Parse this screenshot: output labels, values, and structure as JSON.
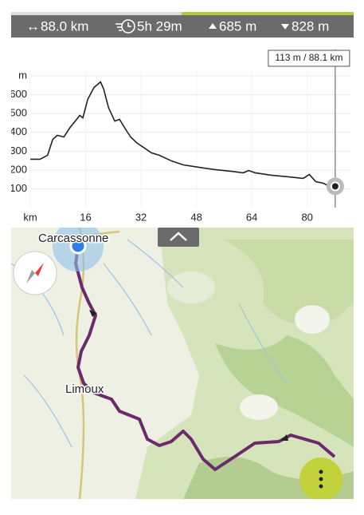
{
  "stats": {
    "distance": "88.0 km",
    "duration": "5h 29m",
    "ascent": "685 m",
    "descent": "828 m"
  },
  "chart_data": {
    "type": "line",
    "annotation": "113 m / 88.1 km",
    "x": [
      0,
      2.8,
      5,
      6.5,
      7.8,
      9.7,
      11.5,
      13.4,
      14.3,
      15.2,
      16.6,
      18.4,
      20.3,
      21.2,
      22.6,
      24.4,
      25.8,
      27.2,
      29,
      30.9,
      32.7,
      35,
      37.3,
      40.8,
      44.2,
      48.8,
      53.4,
      58.1,
      61.5,
      63.1,
      65,
      69.6,
      74.2,
      78.8,
      80.6,
      82.5,
      84.6,
      86.4,
      88.1
    ],
    "series": [
      {
        "color": "#222222",
        "values": [
          257,
          257,
          278,
          363,
          384,
          375,
          426,
          469,
          490,
          477,
          575,
          638,
          668,
          630,
          532,
          460,
          469,
          426,
          375,
          342,
          320,
          291,
          278,
          248,
          227,
          214,
          202,
          193,
          185,
          197,
          185,
          172,
          164,
          155,
          176,
          138,
          130,
          113,
          113
        ]
      }
    ],
    "xlim": [
      0,
      92.5
    ],
    "ylim": [
      0,
      730
    ],
    "xticks": [
      {
        "value": 0,
        "label": "km"
      },
      16,
      32,
      48,
      64,
      80
    ],
    "yticks": [
      100,
      200,
      300,
      400,
      500,
      600,
      {
        "value": 700,
        "label": "m"
      }
    ],
    "grid": true
  },
  "map": {
    "places": [
      "Carcassonne",
      "Limoux"
    ]
  }
}
